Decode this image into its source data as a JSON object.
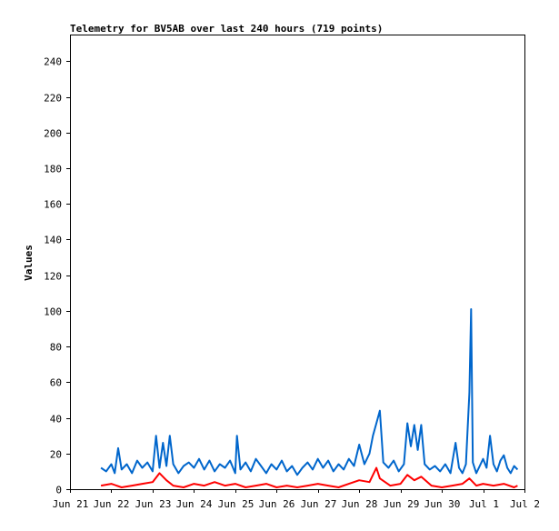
{
  "chart_data": {
    "type": "line",
    "title": "Telemetry for BV5AB over last 240 hours (719 points)",
    "xlabel": "",
    "ylabel": "Values",
    "grid": false,
    "legend": "none",
    "x_range": [
      "2024-06-21T00:00",
      "2024-07-02T00:00"
    ],
    "ylim": [
      0,
      255
    ],
    "y_ticks": [
      0,
      20,
      40,
      60,
      80,
      100,
      120,
      140,
      160,
      180,
      200,
      220,
      240
    ],
    "x_ticks": [
      {
        "date": "2024-06-21T00:00",
        "label": "Jun 21"
      },
      {
        "date": "2024-06-22T00:00",
        "label": "Jun 22"
      },
      {
        "date": "2024-06-23T00:00",
        "label": "Jun 23"
      },
      {
        "date": "2024-06-24T00:00",
        "label": "Jun 24"
      },
      {
        "date": "2024-06-25T00:00",
        "label": "Jun 25"
      },
      {
        "date": "2024-06-26T00:00",
        "label": "Jun 26"
      },
      {
        "date": "2024-06-27T00:00",
        "label": "Jun 27"
      },
      {
        "date": "2024-06-28T00:00",
        "label": "Jun 28"
      },
      {
        "date": "2024-06-29T00:00",
        "label": "Jun 29"
      },
      {
        "date": "2024-06-30T00:00",
        "label": "Jun 30"
      },
      {
        "date": "2024-07-01T00:00",
        "label": "Jul 1"
      },
      {
        "date": "2024-07-02T00:00",
        "label": "Jul 2"
      }
    ],
    "series": [
      {
        "color": "#0066cc",
        "points": [
          [
            "2024-06-21T18:00",
            12
          ],
          [
            "2024-06-21T21:00",
            10
          ],
          [
            "2024-06-22T00:00",
            14
          ],
          [
            "2024-06-22T02:00",
            9
          ],
          [
            "2024-06-22T04:00",
            23
          ],
          [
            "2024-06-22T06:00",
            11
          ],
          [
            "2024-06-22T09:00",
            14
          ],
          [
            "2024-06-22T12:00",
            9
          ],
          [
            "2024-06-22T15:00",
            16
          ],
          [
            "2024-06-22T18:00",
            12
          ],
          [
            "2024-06-22T21:00",
            15
          ],
          [
            "2024-06-23T00:00",
            10
          ],
          [
            "2024-06-23T02:00",
            30
          ],
          [
            "2024-06-23T04:00",
            12
          ],
          [
            "2024-06-23T06:00",
            26
          ],
          [
            "2024-06-23T08:00",
            13
          ],
          [
            "2024-06-23T10:00",
            30
          ],
          [
            "2024-06-23T12:00",
            14
          ],
          [
            "2024-06-23T15:00",
            9
          ],
          [
            "2024-06-23T18:00",
            13
          ],
          [
            "2024-06-23T21:00",
            15
          ],
          [
            "2024-06-24T00:00",
            12
          ],
          [
            "2024-06-24T03:00",
            17
          ],
          [
            "2024-06-24T06:00",
            11
          ],
          [
            "2024-06-24T09:00",
            16
          ],
          [
            "2024-06-24T12:00",
            10
          ],
          [
            "2024-06-24T15:00",
            14
          ],
          [
            "2024-06-24T18:00",
            12
          ],
          [
            "2024-06-24T21:00",
            16
          ],
          [
            "2024-06-25T00:00",
            9
          ],
          [
            "2024-06-25T01:00",
            30
          ],
          [
            "2024-06-25T03:00",
            11
          ],
          [
            "2024-06-25T06:00",
            15
          ],
          [
            "2024-06-25T09:00",
            10
          ],
          [
            "2024-06-25T12:00",
            17
          ],
          [
            "2024-06-25T15:00",
            13
          ],
          [
            "2024-06-25T18:00",
            9
          ],
          [
            "2024-06-25T21:00",
            14
          ],
          [
            "2024-06-26T00:00",
            11
          ],
          [
            "2024-06-26T03:00",
            16
          ],
          [
            "2024-06-26T06:00",
            10
          ],
          [
            "2024-06-26T09:00",
            13
          ],
          [
            "2024-06-26T12:00",
            8
          ],
          [
            "2024-06-26T15:00",
            12
          ],
          [
            "2024-06-26T18:00",
            15
          ],
          [
            "2024-06-26T21:00",
            11
          ],
          [
            "2024-06-27T00:00",
            17
          ],
          [
            "2024-06-27T03:00",
            12
          ],
          [
            "2024-06-27T06:00",
            16
          ],
          [
            "2024-06-27T09:00",
            10
          ],
          [
            "2024-06-27T12:00",
            14
          ],
          [
            "2024-06-27T15:00",
            11
          ],
          [
            "2024-06-27T18:00",
            17
          ],
          [
            "2024-06-27T21:00",
            13
          ],
          [
            "2024-06-28T00:00",
            25
          ],
          [
            "2024-06-28T03:00",
            14
          ],
          [
            "2024-06-28T06:00",
            20
          ],
          [
            "2024-06-28T08:00",
            30
          ],
          [
            "2024-06-28T10:00",
            37
          ],
          [
            "2024-06-28T12:00",
            44
          ],
          [
            "2024-06-28T14:00",
            15
          ],
          [
            "2024-06-28T17:00",
            12
          ],
          [
            "2024-06-28T20:00",
            16
          ],
          [
            "2024-06-28T23:00",
            10
          ],
          [
            "2024-06-29T02:00",
            14
          ],
          [
            "2024-06-29T04:00",
            37
          ],
          [
            "2024-06-29T06:00",
            24
          ],
          [
            "2024-06-29T08:00",
            36
          ],
          [
            "2024-06-29T10:00",
            22
          ],
          [
            "2024-06-29T12:00",
            36
          ],
          [
            "2024-06-29T14:00",
            14
          ],
          [
            "2024-06-29T17:00",
            11
          ],
          [
            "2024-06-29T20:00",
            13
          ],
          [
            "2024-06-29T23:00",
            10
          ],
          [
            "2024-06-30T02:00",
            14
          ],
          [
            "2024-06-30T05:00",
            9
          ],
          [
            "2024-06-30T08:00",
            26
          ],
          [
            "2024-06-30T10:00",
            12
          ],
          [
            "2024-06-30T12:00",
            9
          ],
          [
            "2024-06-30T14:00",
            14
          ],
          [
            "2024-06-30T16:00",
            54
          ],
          [
            "2024-06-30T17:00",
            101
          ],
          [
            "2024-06-30T18:00",
            15
          ],
          [
            "2024-06-30T20:00",
            9
          ],
          [
            "2024-06-30T22:00",
            13
          ],
          [
            "2024-07-01T00:00",
            17
          ],
          [
            "2024-07-01T02:00",
            12
          ],
          [
            "2024-07-01T04:00",
            30
          ],
          [
            "2024-07-01T06:00",
            14
          ],
          [
            "2024-07-01T08:00",
            10
          ],
          [
            "2024-07-01T10:00",
            16
          ],
          [
            "2024-07-01T12:00",
            19
          ],
          [
            "2024-07-01T14:00",
            12
          ],
          [
            "2024-07-01T16:00",
            9
          ],
          [
            "2024-07-01T18:00",
            13
          ],
          [
            "2024-07-01T20:00",
            11
          ]
        ]
      },
      {
        "color": "#ff0000",
        "points": [
          [
            "2024-06-21T18:00",
            2
          ],
          [
            "2024-06-22T00:00",
            3
          ],
          [
            "2024-06-22T06:00",
            1
          ],
          [
            "2024-06-22T12:00",
            2
          ],
          [
            "2024-06-22T18:00",
            3
          ],
          [
            "2024-06-23T00:00",
            4
          ],
          [
            "2024-06-23T04:00",
            9
          ],
          [
            "2024-06-23T08:00",
            5
          ],
          [
            "2024-06-23T12:00",
            2
          ],
          [
            "2024-06-23T18:00",
            1
          ],
          [
            "2024-06-24T00:00",
            3
          ],
          [
            "2024-06-24T06:00",
            2
          ],
          [
            "2024-06-24T12:00",
            4
          ],
          [
            "2024-06-24T18:00",
            2
          ],
          [
            "2024-06-25T00:00",
            3
          ],
          [
            "2024-06-25T06:00",
            1
          ],
          [
            "2024-06-25T12:00",
            2
          ],
          [
            "2024-06-25T18:00",
            3
          ],
          [
            "2024-06-26T00:00",
            1
          ],
          [
            "2024-06-26T06:00",
            2
          ],
          [
            "2024-06-26T12:00",
            1
          ],
          [
            "2024-06-26T18:00",
            2
          ],
          [
            "2024-06-27T00:00",
            3
          ],
          [
            "2024-06-27T06:00",
            2
          ],
          [
            "2024-06-27T12:00",
            1
          ],
          [
            "2024-06-27T18:00",
            3
          ],
          [
            "2024-06-28T00:00",
            5
          ],
          [
            "2024-06-28T06:00",
            4
          ],
          [
            "2024-06-28T10:00",
            12
          ],
          [
            "2024-06-28T12:00",
            6
          ],
          [
            "2024-06-28T18:00",
            2
          ],
          [
            "2024-06-29T00:00",
            3
          ],
          [
            "2024-06-29T04:00",
            8
          ],
          [
            "2024-06-29T08:00",
            5
          ],
          [
            "2024-06-29T12:00",
            7
          ],
          [
            "2024-06-29T18:00",
            2
          ],
          [
            "2024-06-30T00:00",
            1
          ],
          [
            "2024-06-30T06:00",
            2
          ],
          [
            "2024-06-30T12:00",
            3
          ],
          [
            "2024-06-30T16:00",
            6
          ],
          [
            "2024-06-30T20:00",
            2
          ],
          [
            "2024-07-01T00:00",
            3
          ],
          [
            "2024-07-01T06:00",
            2
          ],
          [
            "2024-07-01T12:00",
            3
          ],
          [
            "2024-07-01T18:00",
            1
          ],
          [
            "2024-07-01T20:00",
            2
          ]
        ]
      }
    ]
  }
}
